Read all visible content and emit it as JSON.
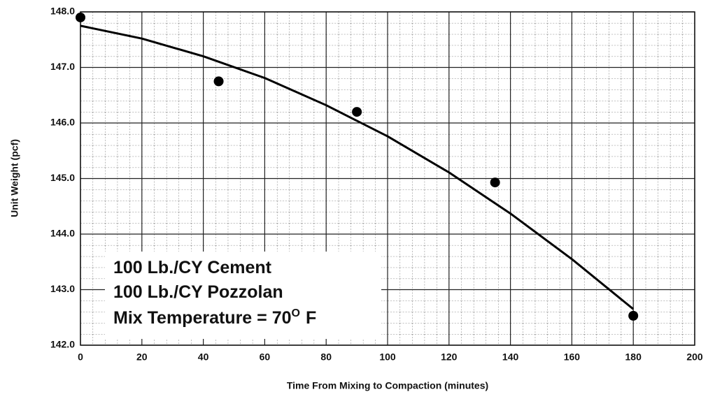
{
  "chart_data": {
    "type": "scatter",
    "xlabel": "Time From Mixing to Compaction (minutes)",
    "ylabel": "Unit Weight (pcf)",
    "series": [
      {
        "color": "#000000",
        "x": [
          0,
          45,
          90,
          135,
          180
        ],
        "values": [
          147.9,
          146.75,
          146.2,
          144.93,
          142.53
        ]
      },
      {
        "type": "line",
        "color": "#000000",
        "x": [
          0,
          20,
          40,
          60,
          80,
          100,
          120,
          140,
          160,
          180
        ],
        "values": [
          147.75,
          147.52,
          147.2,
          146.81,
          146.32,
          145.76,
          145.11,
          144.37,
          143.55,
          142.65
        ]
      }
    ],
    "xlim": [
      0,
      200
    ],
    "xticks": [
      0,
      20,
      40,
      60,
      80,
      100,
      120,
      140,
      160,
      180,
      200
    ],
    "ylim": [
      142,
      148
    ],
    "yticks": [
      {
        "value": 142,
        "label": "142.0"
      },
      {
        "value": 143,
        "label": "143.0"
      },
      {
        "value": 144,
        "label": "144.0"
      },
      {
        "value": 145,
        "label": "145.0"
      },
      {
        "value": 146,
        "label": "146.0"
      },
      {
        "value": 147,
        "label": "147.0"
      },
      {
        "value": 148,
        "label": "148.0"
      }
    ],
    "grid": true,
    "annotations": [
      "100 Lb./CY Cement",
      "100 Lb./CY Pozzolan"
    ],
    "annotation_temp": {
      "text": "Mix Temperature = 70",
      "sup": "O",
      "unit": "F"
    }
  }
}
